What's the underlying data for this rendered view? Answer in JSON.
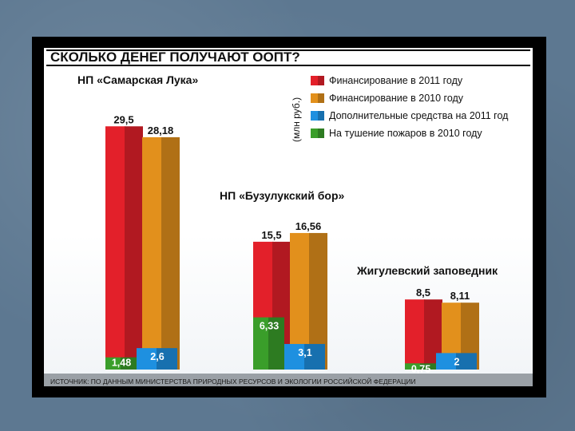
{
  "chart_data": {
    "type": "bar",
    "title": "СКОЛЬКО ДЕНЕГ ПОЛУЧАЮТ ООПТ?",
    "unit_label": "(млн руб.)",
    "source": "ИСТОЧНИК: ПО ДАННЫМ МИНИСТЕРСТВА ПРИРОДНЫХ РЕСУРСОВ И ЭКОЛОГИИ РОССИЙСКОЙ ФЕДЕРАЦИИ",
    "categories": [
      "НП «Самарская Лука»",
      "НП «Бузулукский бор»",
      "Жигулевский заповедник"
    ],
    "series": [
      {
        "name": "Финансирование в 2011 году",
        "color": "#e3202a",
        "values": [
          29.5,
          15.5,
          8.5
        ],
        "labels": [
          "29,5",
          "15,5",
          "8,5"
        ]
      },
      {
        "name": "Финансирование в 2010 году",
        "color": "#e2901c",
        "values": [
          28.18,
          16.56,
          8.11
        ],
        "labels": [
          "28,18",
          "16,56",
          "8,11"
        ]
      },
      {
        "name": "Дополнительные средства на 2011 год",
        "color": "#1e90e0",
        "values": [
          2.6,
          3.1,
          2
        ],
        "labels": [
          "2,6",
          "3,1",
          "2"
        ]
      },
      {
        "name": "На тушение пожаров в 2010 году",
        "color": "#3a9e2a",
        "values": [
          1.48,
          6.33,
          0.75
        ],
        "labels": [
          "1,48",
          "6,33",
          "0,75"
        ]
      }
    ],
    "legend_position": "top-right",
    "grid": false
  }
}
